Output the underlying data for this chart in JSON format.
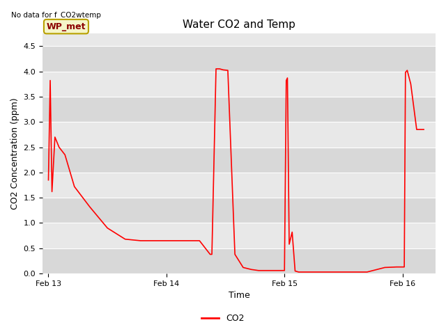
{
  "title": "Water CO2 and Temp",
  "top_left_text": "No data for f_CO2wtemp",
  "xlabel": "Time",
  "ylabel": "CO2 Concentration (ppm)",
  "ylim": [
    0.0,
    4.75
  ],
  "yticks": [
    0.0,
    0.5,
    1.0,
    1.5,
    2.0,
    2.5,
    3.0,
    3.5,
    4.0,
    4.5
  ],
  "legend_label": "CO2",
  "line_color": "red",
  "axes_facecolor": "#e8e8e8",
  "annotation_text": "WP_met",
  "annotation_color": "#8B0000",
  "annotation_bg": "#f5f5c8",
  "annotation_border": "#b8a000",
  "co2_x": [
    0.0,
    0.015,
    0.03,
    0.055,
    0.09,
    0.14,
    0.22,
    0.35,
    0.5,
    0.65,
    0.78,
    0.92,
    1.0,
    1.28,
    1.37,
    1.385,
    1.42,
    1.45,
    1.48,
    1.52,
    1.58,
    1.65,
    1.72,
    1.78,
    2.0,
    2.015,
    2.025,
    2.04,
    2.065,
    2.09,
    2.12,
    2.18,
    2.28,
    2.4,
    2.55,
    2.7,
    2.85,
    2.95,
    3.0,
    3.015,
    3.025,
    3.04,
    3.07,
    3.12,
    3.18
  ],
  "co2_y": [
    1.85,
    3.82,
    1.62,
    2.7,
    2.5,
    2.35,
    1.72,
    1.32,
    0.9,
    0.68,
    0.65,
    0.65,
    0.65,
    0.65,
    0.38,
    0.38,
    4.05,
    4.05,
    4.03,
    4.02,
    0.38,
    0.12,
    0.08,
    0.06,
    0.06,
    3.82,
    3.87,
    0.58,
    0.82,
    0.05,
    0.03,
    0.03,
    0.03,
    0.03,
    0.03,
    0.03,
    0.12,
    0.13,
    0.13,
    0.13,
    3.98,
    4.02,
    3.75,
    2.85,
    2.85
  ],
  "xtick_positions": [
    0.0,
    1.0,
    2.0,
    3.0
  ],
  "xtick_labels": [
    "Feb 13",
    "Feb 14",
    "Feb 15",
    "Feb 16"
  ],
  "xlim": [
    -0.05,
    3.28
  ]
}
